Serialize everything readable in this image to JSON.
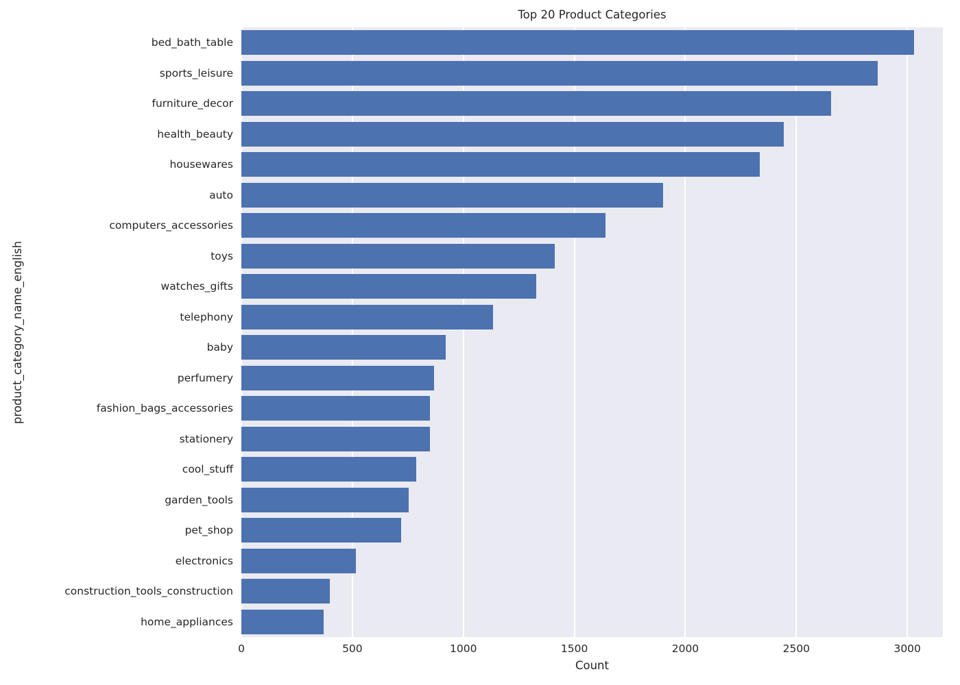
{
  "chart_data": {
    "type": "bar",
    "orientation": "horizontal",
    "title": "Top 20 Product Categories",
    "xlabel": "Count",
    "ylabel": "product_category_name_english",
    "categories": [
      "bed_bath_table",
      "sports_leisure",
      "furniture_decor",
      "health_beauty",
      "housewares",
      "auto",
      "computers_accessories",
      "toys",
      "watches_gifts",
      "telephony",
      "baby",
      "perfumery",
      "fashion_bags_accessories",
      "stationery",
      "cool_stuff",
      "garden_tools",
      "pet_shop",
      "electronics",
      "construction_tools_construction",
      "home_appliances"
    ],
    "values": [
      3029,
      2867,
      2657,
      2444,
      2335,
      1900,
      1639,
      1411,
      1329,
      1134,
      919,
      868,
      849,
      849,
      789,
      753,
      719,
      517,
      400,
      370
    ],
    "xlim": [
      0,
      3160
    ],
    "xticks": [
      0,
      500,
      1000,
      1500,
      2000,
      2500,
      3000
    ],
    "bar_color": "#4c72b0",
    "plot_bg": "#eaeaf2",
    "grid": true,
    "grid_color": "#ffffff",
    "legend": null
  }
}
